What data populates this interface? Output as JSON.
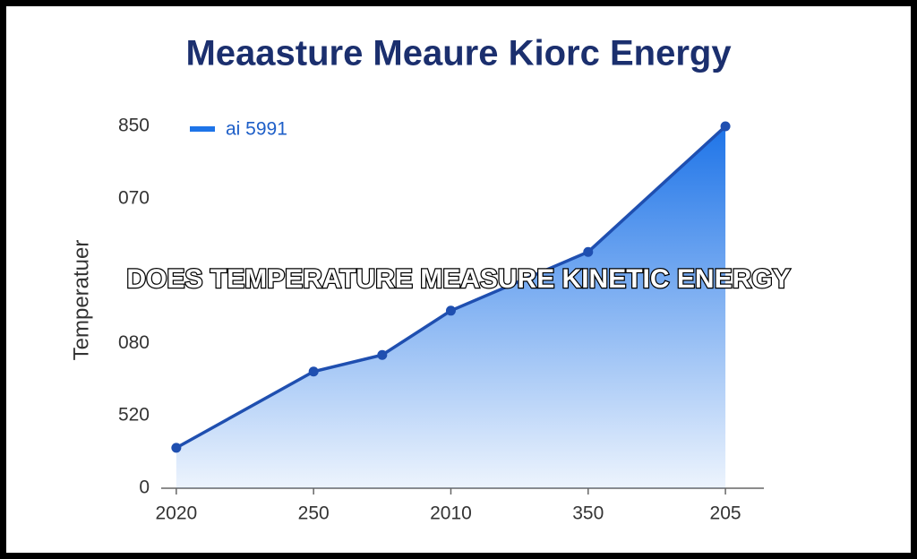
{
  "chart_data": {
    "type": "area",
    "title": "Meaasture Meaure Kiorc Energy",
    "overlay_caption": "DOES TEMPERATURE MEASURE KINETIC ENERGY",
    "y_label": "Temperatuer",
    "x": [
      0,
      1,
      1.5,
      2,
      3,
      4
    ],
    "series": [
      {
        "name": "ai 5991",
        "color": "#1f4fb0",
        "fill": "#1e74e8",
        "values": [
          95,
          274,
          313,
          417,
          555,
          850
        ]
      }
    ],
    "xlim": [
      -0.11,
      4.28
    ],
    "xticks": [
      {
        "value": 0,
        "label": "2020"
      },
      {
        "value": 1,
        "label": "250"
      },
      {
        "value": 2,
        "label": "2010"
      },
      {
        "value": 3,
        "label": "350"
      },
      {
        "value": 4,
        "label": "205"
      }
    ],
    "ylim": [
      0,
      850
    ],
    "yticks": [
      0,
      {
        "value": 170,
        "label": "520"
      },
      {
        "value": 340,
        "label": "080"
      },
      {
        "value": 680,
        "label": "070"
      },
      850
    ],
    "legend": "top-left",
    "grid": false
  }
}
